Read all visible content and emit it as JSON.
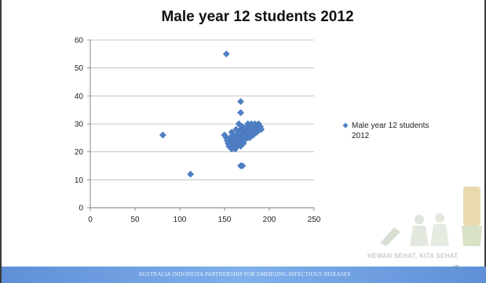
{
  "chart_data": {
    "type": "scatter",
    "title": "Male year 12 students 2012",
    "xlabel": "",
    "ylabel": "",
    "xlim": [
      0,
      250
    ],
    "ylim": [
      0,
      60
    ],
    "xticks": [
      "0",
      "50",
      "100",
      "150",
      "200",
      "250"
    ],
    "yticks": [
      "0",
      "10",
      "20",
      "30",
      "40",
      "50",
      "60"
    ],
    "grid": "horizontal",
    "legend": "right",
    "series": [
      {
        "name": "Male year 12 students 2012",
        "color": "#4f7fc4",
        "points": [
          [
            152,
            55
          ],
          [
            81,
            26
          ],
          [
            112,
            12
          ],
          [
            168,
            38
          ],
          [
            168,
            34
          ],
          [
            168,
            15
          ],
          [
            170,
            15
          ],
          [
            166,
            30
          ],
          [
            150,
            26
          ],
          [
            152,
            25
          ],
          [
            153,
            24
          ],
          [
            154,
            23
          ],
          [
            155,
            22
          ],
          [
            156,
            25
          ],
          [
            157,
            23
          ],
          [
            158,
            21
          ],
          [
            159,
            24
          ],
          [
            160,
            26
          ],
          [
            160,
            22
          ],
          [
            161,
            23
          ],
          [
            162,
            25
          ],
          [
            162,
            21
          ],
          [
            163,
            24
          ],
          [
            164,
            22
          ],
          [
            164,
            26
          ],
          [
            165,
            25
          ],
          [
            165,
            23
          ],
          [
            166,
            27
          ],
          [
            167,
            24
          ],
          [
            168,
            28
          ],
          [
            168,
            22
          ],
          [
            169,
            26
          ],
          [
            170,
            25
          ],
          [
            170,
            29
          ],
          [
            171,
            23
          ],
          [
            172,
            27
          ],
          [
            172,
            24
          ],
          [
            173,
            26
          ],
          [
            174,
            28
          ],
          [
            175,
            25
          ],
          [
            175,
            29
          ],
          [
            176,
            27
          ],
          [
            177,
            26
          ],
          [
            178,
            28
          ],
          [
            178,
            25
          ],
          [
            179,
            29
          ],
          [
            180,
            27
          ],
          [
            180,
            30
          ],
          [
            181,
            28
          ],
          [
            182,
            26
          ],
          [
            183,
            29
          ],
          [
            184,
            30
          ],
          [
            185,
            28
          ],
          [
            186,
            27
          ],
          [
            187,
            29
          ],
          [
            188,
            30
          ],
          [
            189,
            28
          ],
          [
            190,
            29
          ],
          [
            191,
            28
          ],
          [
            158,
            27
          ],
          [
            163,
            28
          ],
          [
            167,
            27
          ],
          [
            171,
            28
          ],
          [
            176,
            30
          ]
        ]
      }
    ]
  },
  "footer": {
    "text": "AUSTRALIA INDONESIA PARTNERSHIP FOR EMERGING INFECTIOUS DISEASES",
    "page_number": "15"
  },
  "logo": {
    "text": "HEWAN SEHAT, KITA SEHAT"
  }
}
